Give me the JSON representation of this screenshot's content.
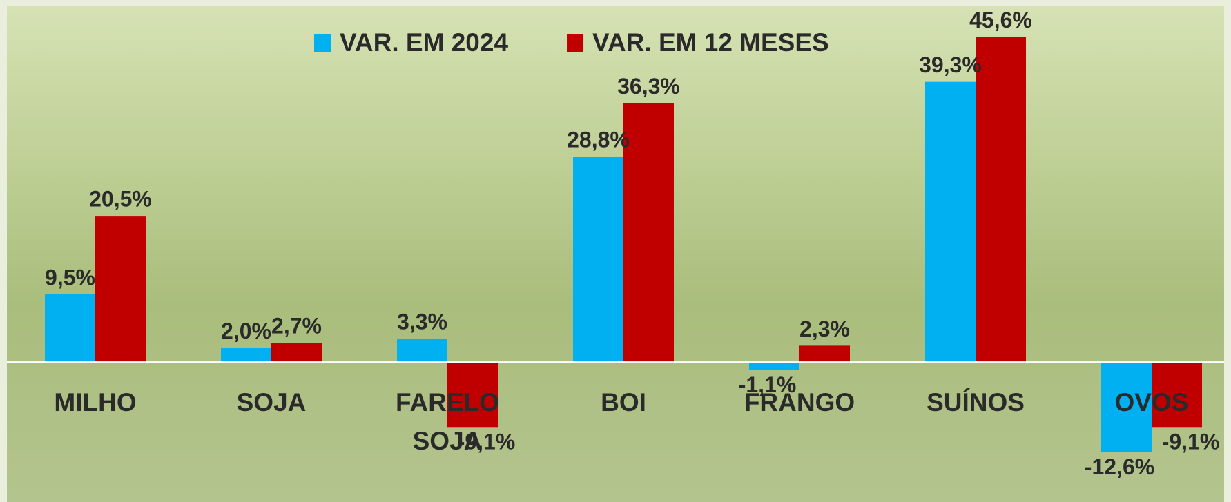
{
  "chart_data": {
    "type": "bar",
    "categories": [
      "MILHO",
      "SOJA",
      "FARELO SOJA",
      "BOI",
      "FRANGO",
      "SUÍNOS",
      "OVOS"
    ],
    "series": [
      {
        "name": "VAR. EM 2024",
        "color": "#00b0f0",
        "values": [
          9.5,
          2.0,
          3.3,
          28.8,
          -1.1,
          39.3,
          -12.6
        ],
        "value_labels": [
          "9,5%",
          "2,0%",
          "3,3%",
          "28,8%",
          "-1,1%",
          "39,3%",
          "-12,6%"
        ]
      },
      {
        "name": "VAR. EM 12 MESES",
        "color": "#c00000",
        "values": [
          20.5,
          2.7,
          -9.1,
          36.3,
          2.3,
          45.6,
          -9.1
        ],
        "value_labels": [
          "20,5%",
          "2,7%",
          "-9,1%",
          "36,3%",
          "2,3%",
          "45,6%",
          "-9,1%"
        ]
      }
    ],
    "ylim": [
      -17,
      50
    ],
    "legend": "top"
  }
}
